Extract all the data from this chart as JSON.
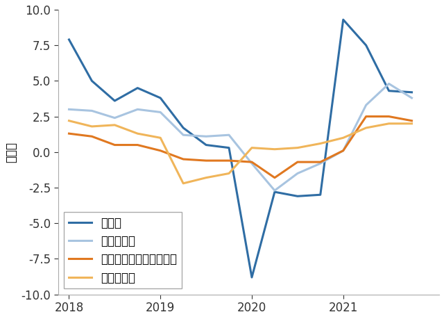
{
  "series": {
    "增值税": {
      "x": [
        2018.0,
        2018.25,
        2018.5,
        2018.75,
        2019.0,
        2019.25,
        2019.5,
        2019.75,
        2020.0,
        2020.25,
        2020.5,
        2020.75,
        2021.0,
        2021.25,
        2021.5,
        2021.75
      ],
      "y": [
        7.9,
        5.0,
        3.6,
        4.5,
        3.8,
        1.7,
        0.5,
        0.3,
        -8.8,
        -2.8,
        -3.1,
        -3.0,
        9.3,
        7.5,
        4.3,
        4.2
      ],
      "color": "#2f6da4",
      "linewidth": 2.2,
      "label": "增值税"
    },
    "企业所得税": {
      "x": [
        2018.0,
        2018.25,
        2018.5,
        2018.75,
        2019.0,
        2019.25,
        2019.5,
        2019.75,
        2020.0,
        2020.25,
        2020.5,
        2020.75,
        2021.0,
        2021.25,
        2021.5,
        2021.75
      ],
      "y": [
        3.0,
        2.9,
        2.4,
        3.0,
        2.8,
        1.2,
        1.1,
        1.2,
        -0.8,
        -2.7,
        -1.5,
        -0.8,
        0.1,
        3.3,
        4.8,
        3.8
      ],
      "color": "#a8c4e0",
      "linewidth": 2.2,
      "label": "企业所得税"
    },
    "进口产品消费税、增值税": {
      "x": [
        2018.0,
        2018.25,
        2018.5,
        2018.75,
        2019.0,
        2019.25,
        2019.5,
        2019.75,
        2020.0,
        2020.25,
        2020.5,
        2020.75,
        2021.0,
        2021.25,
        2021.5,
        2021.75
      ],
      "y": [
        1.3,
        1.1,
        0.5,
        0.5,
        0.1,
        -0.5,
        -0.6,
        -0.6,
        -0.7,
        -1.8,
        -0.7,
        -0.7,
        0.1,
        2.5,
        2.5,
        2.2
      ],
      "color": "#e07820",
      "linewidth": 2.2,
      "label": "进口产品消费税、增值税"
    },
    "个人所得税": {
      "x": [
        2018.0,
        2018.25,
        2018.5,
        2018.75,
        2019.0,
        2019.25,
        2019.5,
        2019.75,
        2020.0,
        2020.25,
        2020.5,
        2020.75,
        2021.0,
        2021.25,
        2021.5,
        2021.75
      ],
      "y": [
        2.2,
        1.8,
        1.9,
        1.3,
        1.0,
        -2.2,
        -1.8,
        -1.5,
        0.3,
        0.2,
        0.3,
        0.6,
        1.0,
        1.7,
        2.0,
        2.0
      ],
      "color": "#f0b55a",
      "linewidth": 2.2,
      "label": "个人所得税"
    }
  },
  "ylabel": "百分比",
  "ylim": [
    -10.0,
    10.0
  ],
  "xlim": [
    2017.88,
    2022.05
  ],
  "xticks": [
    2018,
    2019,
    2020,
    2021
  ],
  "yticks": [
    -10.0,
    -7.5,
    -5.0,
    -2.5,
    0.0,
    2.5,
    5.0,
    7.5,
    10.0
  ],
  "legend_order": [
    "增值税",
    "企业所得税",
    "进口产品消费税、增值税",
    "个人所得税"
  ],
  "legend_loc": "lower left",
  "fontsize": 12
}
